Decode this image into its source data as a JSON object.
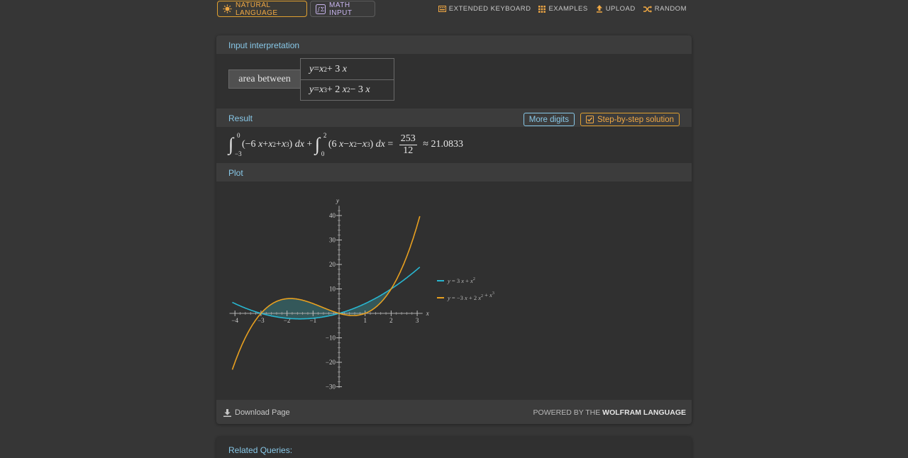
{
  "topbar": {
    "natural_language_label": "NATURAL LANGUAGE",
    "math_input_label": "MATH INPUT",
    "links": [
      {
        "label": "EXTENDED KEYBOARD",
        "icon": "keyboard-icon"
      },
      {
        "label": "EXAMPLES",
        "icon": "grid-icon"
      },
      {
        "label": "UPLOAD",
        "icon": "upload-icon"
      },
      {
        "label": "RANDOM",
        "icon": "shuffle-icon"
      }
    ]
  },
  "interpretation": {
    "title": "Input interpretation",
    "label": "area between",
    "eq1": {
      "lhs": "y",
      "eq": " = ",
      "t1": "x",
      "p1": "2",
      "t2": " + 3",
      "t3": "x"
    },
    "eq2": {
      "lhs": "y",
      "eq": " = ",
      "t1": "x",
      "p1": "3",
      "t2": " + 2",
      "t3": "x",
      "p2": "2",
      "t4": " − 3",
      "t5": "x"
    }
  },
  "result": {
    "title": "Result",
    "more_digits_label": "More digits",
    "step_label": "Step-by-step solution",
    "int1": {
      "upper": "0",
      "lower": "−3",
      "body_a": "(−6",
      "body_b": "x",
      "body_c": " + ",
      "body_d": "x",
      "p2": "2",
      "body_e": " + ",
      "body_f": "x",
      "p3": "3",
      "body_g": ")",
      "d": "dx"
    },
    "plus": " + ",
    "int2": {
      "upper": "2",
      "lower": "0",
      "body_a": "(6",
      "body_b": "x",
      "body_c": " − ",
      "body_d": "x",
      "p2": "2",
      "body_e": " − ",
      "body_f": "x",
      "p3": "3",
      "body_g": ")",
      "d": "dx"
    },
    "equals": " = ",
    "numerator": "253",
    "denominator": "12",
    "approx": " ≈ 21.0833"
  },
  "plot": {
    "title": "Plot",
    "chart_data": {
      "type": "line",
      "xlabel": "x",
      "ylabel": "y",
      "xlim": [
        -4.1,
        3.1
      ],
      "ylim": [
        -30.5,
        44
      ],
      "x_ticks": [
        -4,
        -3,
        -2,
        -1,
        1,
        2,
        3
      ],
      "y_ticks": [
        -30,
        -20,
        -10,
        10,
        20,
        30,
        40
      ],
      "x_range": [
        -4.1,
        3.1
      ],
      "series": [
        {
          "name": "y = 3x + x²",
          "color": "#28b6d0",
          "formula": "x^2+3x"
        },
        {
          "name": "y = −3x + 2x² + x³",
          "color": "#e8a020",
          "formula": "x^3+2x^2-3x"
        }
      ],
      "shaded_region": {
        "x_from": -3,
        "x_to": 2,
        "color": "#3a8a8e"
      },
      "legend": [
        {
          "lhs": "y",
          "eq": " = 3",
          "x": "x",
          "rest": " + ",
          "x2": "x",
          "p": "2"
        },
        {
          "lhs": "y",
          "eq": " = −3",
          "x": "x",
          "rest": " + 2",
          "x2": "x",
          "p": "2",
          "rest2": " + ",
          "x3": "x",
          "p3": "3"
        }
      ],
      "legend_position": "right",
      "grid": false
    }
  },
  "footer": {
    "download_label": "Download Page",
    "powered_prefix": "POWERED BY THE ",
    "powered_brand": "WOLFRAM LANGUAGE"
  },
  "related": {
    "title": "Related Queries:"
  }
}
